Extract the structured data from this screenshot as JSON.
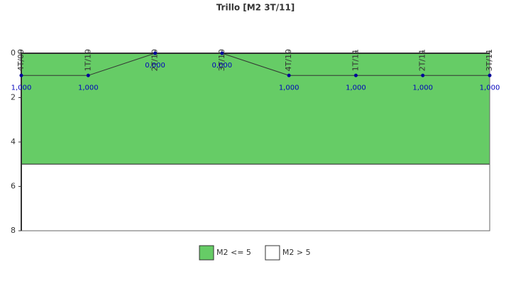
{
  "chart_data": {
    "type": "line",
    "title": "Trillo [M2 3T/11]",
    "categories": [
      "4T/09",
      "1T/10",
      "2T/10",
      "3T/10",
      "4T/10",
      "1T/11",
      "2T/11",
      "3T/11"
    ],
    "values": [
      1,
      1,
      0,
      0,
      1,
      1,
      1,
      1
    ],
    "value_labels": [
      "1,000",
      "1,000",
      "0,000",
      "0,000",
      "1,000",
      "1,000",
      "1,000",
      "1,000"
    ],
    "line_color": "#333333",
    "point_color": "#000099",
    "ylim": [
      0,
      8
    ],
    "inverted": true,
    "yticks": [
      0,
      2,
      4,
      6,
      8
    ],
    "bands": [
      {
        "name": "M2 <= 5",
        "color": "#66cc66",
        "from": 0,
        "to": 5
      },
      {
        "name": "M2 > 5",
        "color": "#ffffff",
        "from": 5,
        "to": 8
      }
    ]
  }
}
